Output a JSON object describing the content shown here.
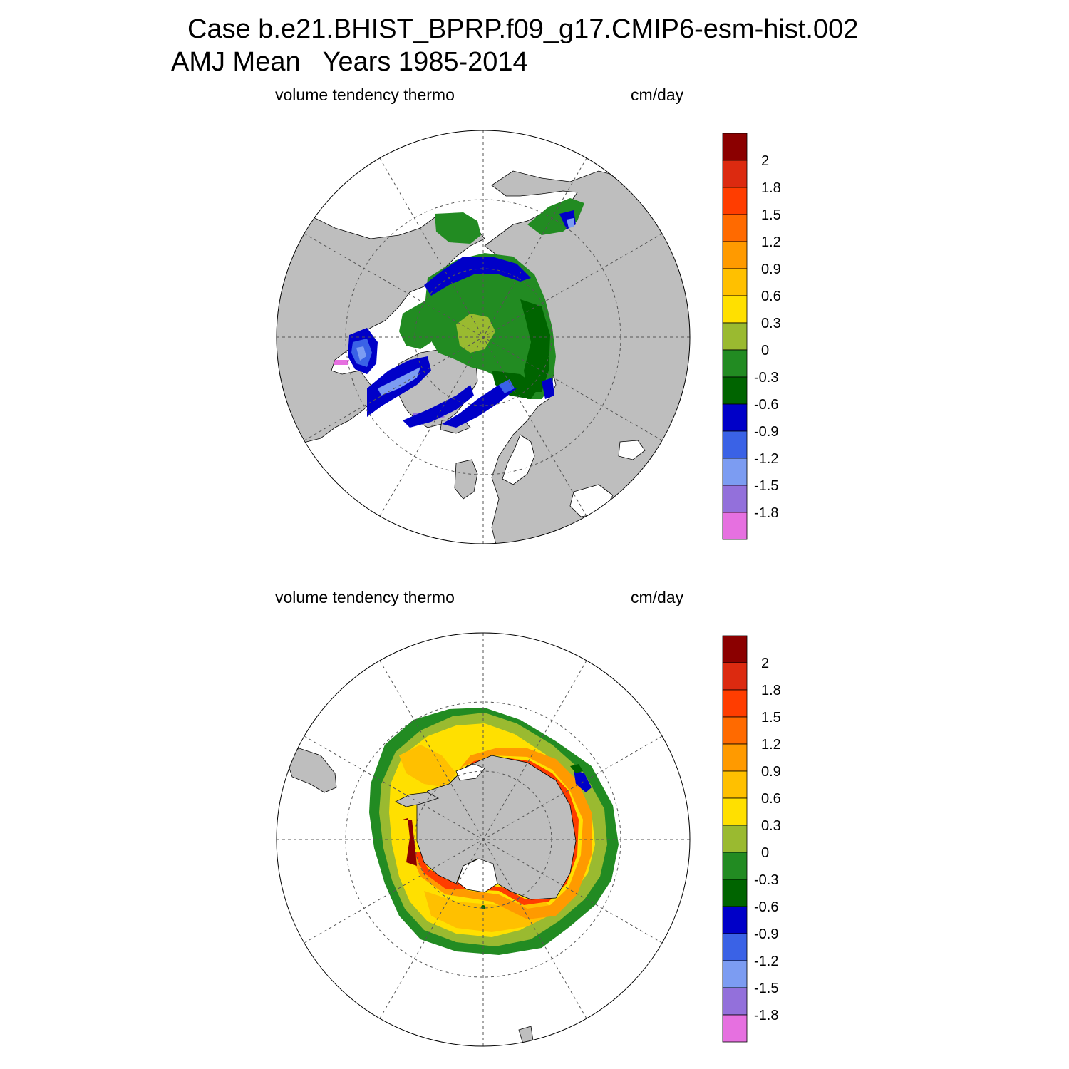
{
  "header": {
    "case_title": "Case b.e21.BHIST_BPRP.f09_g17.CMIP6-esm-hist.002",
    "period_title": "AMJ Mean   Years 1985-2014"
  },
  "panels": [
    {
      "id": "nh",
      "variable_label": "volume tendency thermo",
      "units_label": "cm/day"
    },
    {
      "id": "sh",
      "variable_label": "volume tendency thermo",
      "units_label": "cm/day"
    }
  ],
  "colorbar": {
    "labels": [
      "2",
      "1.8",
      "1.5",
      "1.2",
      "0.9",
      "0.6",
      "0.3",
      "0",
      "-0.3",
      "-0.6",
      "-0.9",
      "-1.2",
      "-1.5",
      "-1.8"
    ],
    "colors": [
      "#8b0000",
      "#dc2a10",
      "#ff3d00",
      "#ff6a00",
      "#ff9a00",
      "#ffc000",
      "#ffe000",
      "#9aba30",
      "#228b22",
      "#006400",
      "#0000c8",
      "#3a62e6",
      "#7c9cf2",
      "#9370db",
      "#e670e0"
    ]
  },
  "colors": {
    "land": "#bebebe",
    "ocean": "#ffffff",
    "gridline": "#555555"
  }
}
